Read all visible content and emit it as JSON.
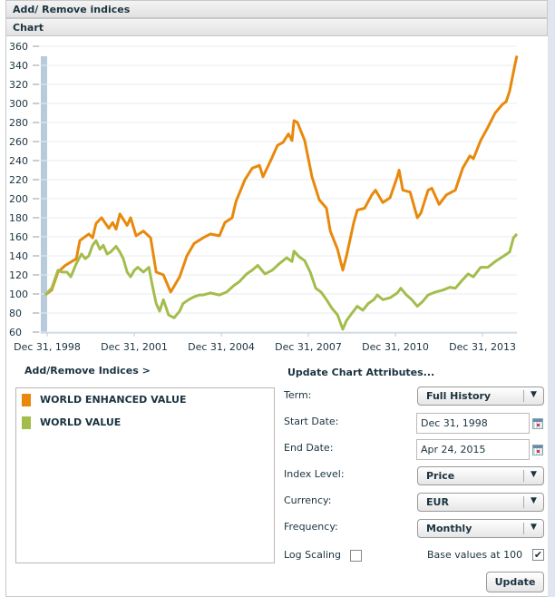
{
  "header": {
    "title": "Add/ Remove indices",
    "chart_tab": "Chart"
  },
  "chart_data": {
    "type": "line",
    "title": "",
    "xlabel": "",
    "ylabel": "",
    "ylim": [
      60,
      360
    ],
    "yticks": [
      60,
      80,
      100,
      120,
      140,
      160,
      180,
      200,
      220,
      240,
      260,
      280,
      300,
      320,
      340,
      360
    ],
    "xlim": [
      1999.0,
      2015.31
    ],
    "xticks": [
      {
        "x": 1999.0,
        "label": "Dec 31, 1998"
      },
      {
        "x": 2002.0,
        "label": "Dec 31, 2001"
      },
      {
        "x": 2005.0,
        "label": "Dec 31, 2004"
      },
      {
        "x": 2008.0,
        "label": "Dec 31, 2007"
      },
      {
        "x": 2011.0,
        "label": "Dec 31, 2010"
      },
      {
        "x": 2014.0,
        "label": "Dec 31, 2013"
      }
    ],
    "grid": true,
    "series": [
      {
        "name": "WORLD ENHANCED VALUE",
        "color": "#e8890c",
        "points": [
          [
            1999.06,
            99
          ],
          [
            1999.28,
            104
          ],
          [
            1999.5,
            123
          ],
          [
            1999.75,
            130
          ],
          [
            2000.13,
            137
          ],
          [
            2000.25,
            156
          ],
          [
            2000.56,
            163
          ],
          [
            2000.69,
            159
          ],
          [
            2000.81,
            174
          ],
          [
            2001.0,
            180
          ],
          [
            2001.25,
            169
          ],
          [
            2001.38,
            175
          ],
          [
            2001.5,
            168
          ],
          [
            2001.63,
            184
          ],
          [
            2001.88,
            172
          ],
          [
            2002.0,
            180
          ],
          [
            2002.19,
            161
          ],
          [
            2002.44,
            166
          ],
          [
            2002.69,
            159
          ],
          [
            2002.88,
            123
          ],
          [
            2003.13,
            120
          ],
          [
            2003.38,
            102
          ],
          [
            2003.69,
            118
          ],
          [
            2003.94,
            140
          ],
          [
            2004.19,
            153
          ],
          [
            2004.5,
            159
          ],
          [
            2004.75,
            163
          ],
          [
            2005.06,
            161
          ],
          [
            2005.25,
            175
          ],
          [
            2005.5,
            180
          ],
          [
            2005.63,
            197
          ],
          [
            2005.94,
            220
          ],
          [
            2006.19,
            232
          ],
          [
            2006.44,
            235
          ],
          [
            2006.56,
            223
          ],
          [
            2006.81,
            239
          ],
          [
            2007.06,
            256
          ],
          [
            2007.25,
            259
          ],
          [
            2007.44,
            268
          ],
          [
            2007.56,
            261
          ],
          [
            2007.63,
            282
          ],
          [
            2007.75,
            280
          ],
          [
            2008.0,
            261
          ],
          [
            2008.25,
            223
          ],
          [
            2008.5,
            199
          ],
          [
            2008.75,
            190
          ],
          [
            2008.88,
            166
          ],
          [
            2009.13,
            147
          ],
          [
            2009.31,
            125
          ],
          [
            2009.44,
            140
          ],
          [
            2009.69,
            175
          ],
          [
            2009.81,
            188
          ],
          [
            2010.06,
            190
          ],
          [
            2010.31,
            204
          ],
          [
            2010.44,
            209
          ],
          [
            2010.69,
            196
          ],
          [
            2010.94,
            201
          ],
          [
            2011.19,
            223
          ],
          [
            2011.25,
            230
          ],
          [
            2011.38,
            209
          ],
          [
            2011.63,
            207
          ],
          [
            2011.88,
            180
          ],
          [
            2012.0,
            185
          ],
          [
            2012.25,
            209
          ],
          [
            2012.38,
            211
          ],
          [
            2012.63,
            194
          ],
          [
            2012.88,
            204
          ],
          [
            2013.19,
            209
          ],
          [
            2013.44,
            232
          ],
          [
            2013.69,
            245
          ],
          [
            2013.81,
            242
          ],
          [
            2014.06,
            261
          ],
          [
            2014.31,
            275
          ],
          [
            2014.56,
            290
          ],
          [
            2014.81,
            299
          ],
          [
            2014.94,
            302
          ],
          [
            2015.06,
            313
          ],
          [
            2015.25,
            342
          ],
          [
            2015.31,
            350
          ]
        ]
      },
      {
        "name": "WORLD VALUE",
        "color": "#a3bd4d",
        "points": [
          [
            1999.06,
            99
          ],
          [
            1999.28,
            106
          ],
          [
            1999.5,
            125
          ],
          [
            1999.63,
            123
          ],
          [
            1999.81,
            123
          ],
          [
            1999.94,
            118
          ],
          [
            2000.13,
            132
          ],
          [
            2000.31,
            142
          ],
          [
            2000.44,
            137
          ],
          [
            2000.56,
            140
          ],
          [
            2000.69,
            151
          ],
          [
            2000.81,
            156
          ],
          [
            2000.94,
            147
          ],
          [
            2001.06,
            151
          ],
          [
            2001.19,
            142
          ],
          [
            2001.31,
            144
          ],
          [
            2001.5,
            150
          ],
          [
            2001.63,
            144
          ],
          [
            2001.75,
            137
          ],
          [
            2001.88,
            123
          ],
          [
            2002.0,
            118
          ],
          [
            2002.13,
            125
          ],
          [
            2002.25,
            128
          ],
          [
            2002.44,
            123
          ],
          [
            2002.63,
            128
          ],
          [
            2002.75,
            109
          ],
          [
            2002.88,
            90
          ],
          [
            2003.0,
            82
          ],
          [
            2003.13,
            94
          ],
          [
            2003.31,
            78
          ],
          [
            2003.5,
            75
          ],
          [
            2003.69,
            82
          ],
          [
            2003.81,
            90
          ],
          [
            2004.0,
            94
          ],
          [
            2004.19,
            97
          ],
          [
            2004.38,
            99
          ],
          [
            2004.5,
            99
          ],
          [
            2004.75,
            101
          ],
          [
            2005.06,
            99
          ],
          [
            2005.31,
            102
          ],
          [
            2005.56,
            109
          ],
          [
            2005.75,
            113
          ],
          [
            2006.0,
            121
          ],
          [
            2006.19,
            125
          ],
          [
            2006.38,
            130
          ],
          [
            2006.63,
            121
          ],
          [
            2006.88,
            125
          ],
          [
            2007.13,
            132
          ],
          [
            2007.38,
            138
          ],
          [
            2007.56,
            134
          ],
          [
            2007.63,
            145
          ],
          [
            2007.81,
            139
          ],
          [
            2008.0,
            135
          ],
          [
            2008.19,
            123
          ],
          [
            2008.38,
            106
          ],
          [
            2008.56,
            102
          ],
          [
            2008.75,
            94
          ],
          [
            2008.94,
            85
          ],
          [
            2009.13,
            78
          ],
          [
            2009.31,
            63
          ],
          [
            2009.44,
            72
          ],
          [
            2009.63,
            80
          ],
          [
            2009.81,
            87
          ],
          [
            2010.0,
            83
          ],
          [
            2010.19,
            90
          ],
          [
            2010.38,
            94
          ],
          [
            2010.5,
            99
          ],
          [
            2010.69,
            94
          ],
          [
            2010.94,
            96
          ],
          [
            2011.19,
            101
          ],
          [
            2011.31,
            106
          ],
          [
            2011.5,
            99
          ],
          [
            2011.69,
            94
          ],
          [
            2011.88,
            87
          ],
          [
            2012.06,
            92
          ],
          [
            2012.25,
            99
          ],
          [
            2012.5,
            102
          ],
          [
            2012.75,
            104
          ],
          [
            2013.0,
            107
          ],
          [
            2013.19,
            106
          ],
          [
            2013.44,
            115
          ],
          [
            2013.63,
            121
          ],
          [
            2013.81,
            118
          ],
          [
            2014.06,
            128
          ],
          [
            2014.31,
            128
          ],
          [
            2014.56,
            134
          ],
          [
            2014.81,
            139
          ],
          [
            2015.06,
            144
          ],
          [
            2015.19,
            159
          ],
          [
            2015.31,
            163
          ]
        ]
      }
    ]
  },
  "legend": {
    "heading": "Add/Remove Indices >",
    "items": [
      {
        "label": "WORLD ENHANCED VALUE",
        "color": "#e8890c"
      },
      {
        "label": "WORLD VALUE",
        "color": "#a3bd4d"
      }
    ]
  },
  "form": {
    "heading": "Update Chart Attributes...",
    "term_label": "Term:",
    "term_value": "Full History",
    "start_label": "Start Date:",
    "start_value": "Dec 31, 1998",
    "end_label": "End Date:",
    "end_value": "Apr 24, 2015",
    "index_label": "Index Level:",
    "index_value": "Price",
    "currency_label": "Currency:",
    "currency_value": "EUR",
    "frequency_label": "Frequency:",
    "frequency_value": "Monthly",
    "log_label": "Log Scaling",
    "log_checked": false,
    "base_label": "Base values at 100",
    "base_checked": true,
    "update_label": "Update"
  }
}
